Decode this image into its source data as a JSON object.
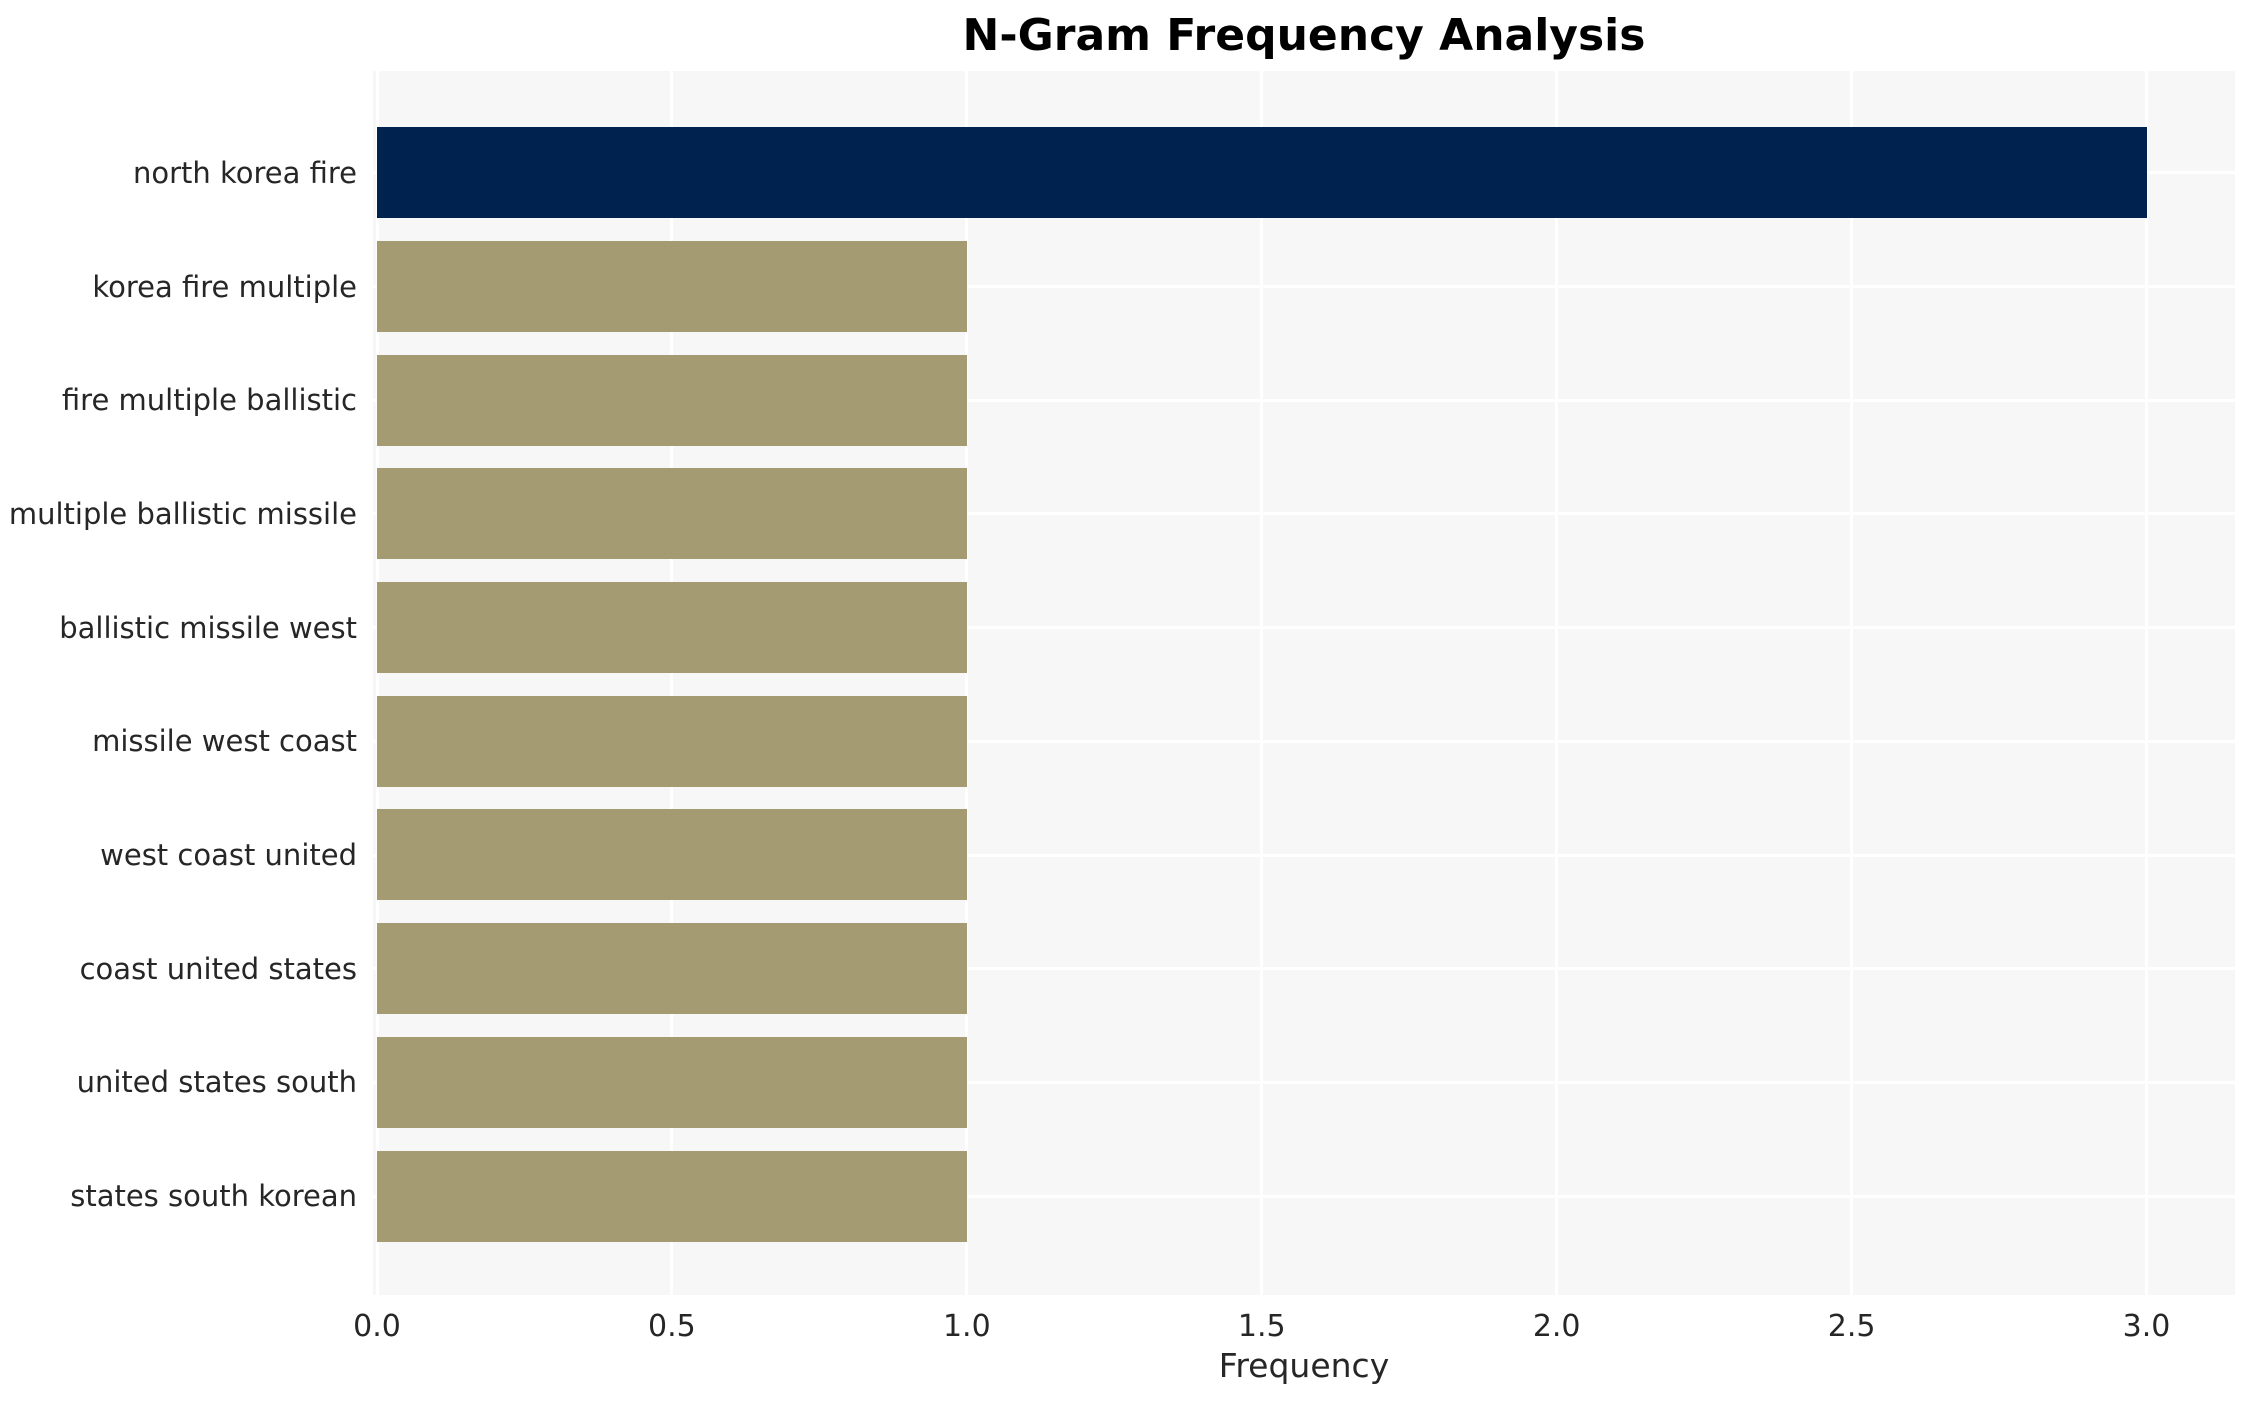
{
  "chart_data": {
    "type": "bar",
    "orientation": "horizontal",
    "title": "N-Gram Frequency Analysis",
    "xlabel": "Frequency",
    "ylabel": "",
    "categories": [
      "north korea fire",
      "korea fire multiple",
      "fire multiple ballistic",
      "multiple ballistic missile",
      "ballistic missile west",
      "missile west coast",
      "west coast united",
      "coast united states",
      "united states south",
      "states south korean"
    ],
    "values": [
      3,
      1,
      1,
      1,
      1,
      1,
      1,
      1,
      1,
      1
    ],
    "bar_colors": [
      "#00224e",
      "#a49b72",
      "#a49b72",
      "#a49b72",
      "#a49b72",
      "#a49b72",
      "#a49b72",
      "#a49b72",
      "#a49b72",
      "#a49b72"
    ],
    "xlim": [
      0,
      3.15
    ],
    "xticks": [
      {
        "value": 0.0,
        "label": "0.0"
      },
      {
        "value": 0.5,
        "label": "0.5"
      },
      {
        "value": 1.0,
        "label": "1.0"
      },
      {
        "value": 1.5,
        "label": "1.5"
      },
      {
        "value": 2.0,
        "label": "2.0"
      },
      {
        "value": 2.5,
        "label": "2.5"
      },
      {
        "value": 3.0,
        "label": "3.0"
      }
    ],
    "grid": true,
    "legend_position": "none",
    "colors": {
      "highlight_bar": "#00224e",
      "default_bar": "#a49b72",
      "plot_background": "#f7f7f7",
      "gridline": "#ffffff",
      "tick_text": "#262626",
      "title_text": "#000000"
    }
  }
}
